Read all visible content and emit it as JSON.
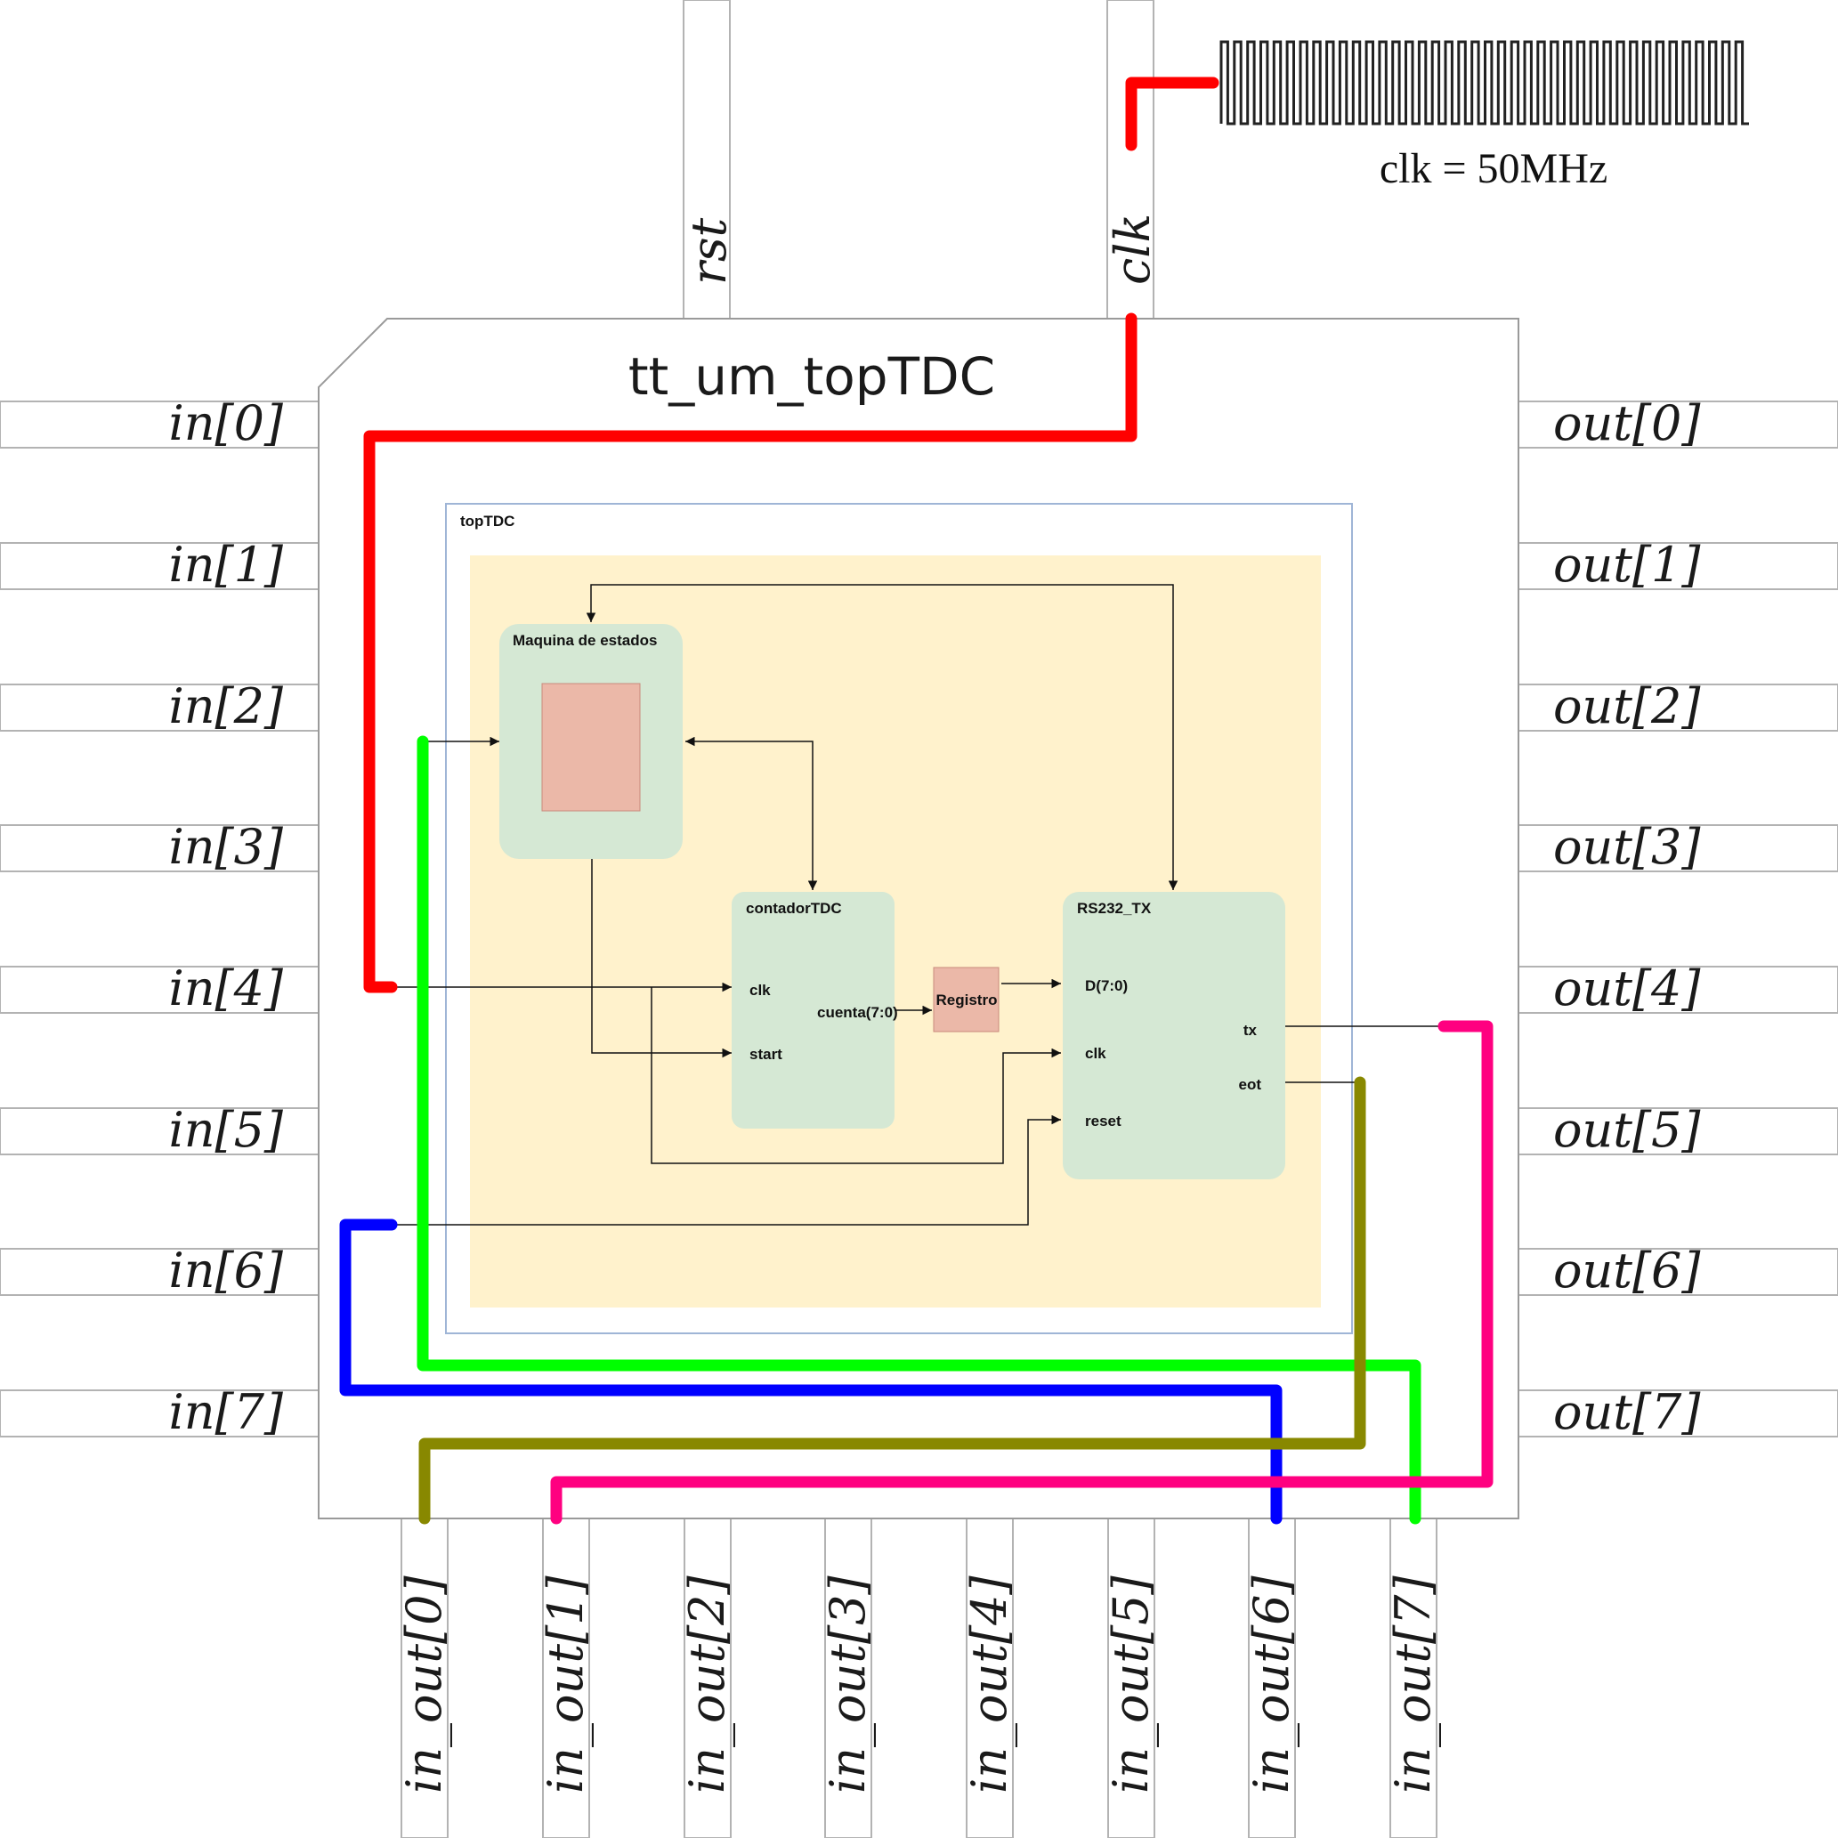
{
  "chip": {
    "title": "tt_um_topTDC"
  },
  "top_pins": [
    "rst",
    "clk"
  ],
  "left_pins": [
    "in[0]",
    "in[1]",
    "in[2]",
    "in[3]",
    "in[4]",
    "in[5]",
    "in[6]",
    "in[7]"
  ],
  "right_pins": [
    "out[0]",
    "out[1]",
    "out[2]",
    "out[3]",
    "out[4]",
    "out[5]",
    "out[6]",
    "out[7]"
  ],
  "bottom_pins": [
    "in_out[0]",
    "in_out[1]",
    "in_out[2]",
    "in_out[3]",
    "in_out[4]",
    "in_out[5]",
    "in_out[6]",
    "in_out[7]"
  ],
  "clock": {
    "label": "clk = 50MHz"
  },
  "module": {
    "name": "topTDC",
    "fsm_title": "Maquina  de estados",
    "counter": {
      "title": "contadorTDC",
      "port_clk": "clk",
      "port_start": "start",
      "port_out": "cuenta(7:0)"
    },
    "register_label": "Registro",
    "uart": {
      "title": "RS232_TX",
      "port_d": "D(7:0)",
      "port_clk": "clk",
      "port_reset": "reset",
      "port_tx": "tx",
      "port_eot": "eot"
    }
  },
  "colors": {
    "clk_wire": "#ff0000",
    "in_out7_wire": "#00ff00",
    "in_out6_wire": "#0000ff",
    "in_out0_wire": "#888800",
    "in_out1_wire": "#ff0080",
    "module_fill": "#fff2cc",
    "block_fill": "#d5e8d4",
    "register_fill": "#ebb8a8"
  }
}
